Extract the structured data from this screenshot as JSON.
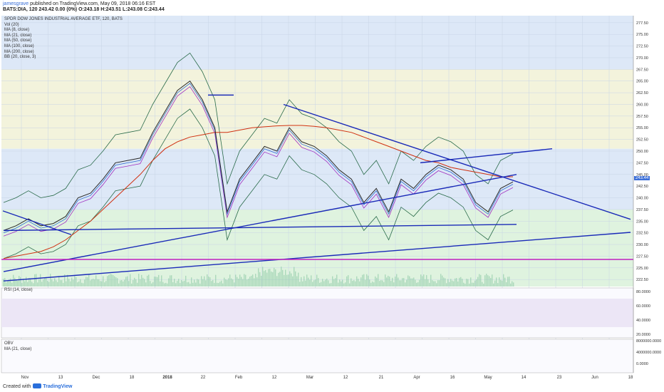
{
  "header": {
    "author": "jamesgrave",
    "published": " published on TradingView.com, May 09, 2018 06:16 EST",
    "quote": "BATS:DIA, 120  243.42 0.00 (0%) O:243.18 H:243.51 L:243.08 C:243.44"
  },
  "indicators": [
    "SPDR DOW JONES INDUSTRIAL AVERAGE ETF, 120, BATS",
    "Vol (20)",
    "MA (8, close)",
    "MA (21, close)",
    "MA (50, close)",
    "MA (100, close)",
    "MA (200, close)",
    "BB (20, close, 3)"
  ],
  "rsi_label": "RSI (14, close)",
  "obv_label": "OBV",
  "obv_sub": "MA (21, close)",
  "last_price_badge": "243.44",
  "footer": {
    "created": "Created with",
    "brand": "TradingView"
  },
  "colors": {
    "price_line": "#2a2a2a",
    "ma8": "#1a6b3e",
    "ma21": "#2e6bd0",
    "ma50": "#a030c0",
    "ma100": "#c03060",
    "ma200": "#d03010",
    "bb": "#2a6b4a",
    "trend": "#1a2ab8",
    "band_green": "#dff3df",
    "band_blue": "#dde8f7",
    "band_yellow": "#f3f3dc"
  },
  "chart_data": [
    {
      "type": "line",
      "title": "SPDR DOW JONES INDUSTRIAL AVERAGE ETF, 120, BATS",
      "x_tick_labels": [
        "Nov",
        "13",
        "Dec",
        "18",
        "2018",
        "22",
        "Feb",
        "12",
        "Mar",
        "12",
        "21",
        "Apr",
        "16",
        "May",
        "14",
        "23",
        "Jun",
        "18"
      ],
      "y_tick_labels": [
        "277.50",
        "275.00",
        "272.50",
        "270.00",
        "267.50",
        "265.00",
        "262.50",
        "260.00",
        "257.50",
        "255.00",
        "252.50",
        "250.00",
        "247.50",
        "245.00",
        "242.50",
        "240.00",
        "237.50",
        "235.00",
        "232.50",
        "230.00",
        "227.50",
        "225.00",
        "222.50"
      ],
      "ylim": [
        221,
        279
      ],
      "series": [
        {
          "name": "DIA close",
          "values": [
            233,
            234,
            235.5,
            234,
            234.5,
            236,
            240,
            241,
            244,
            247.5,
            248,
            248.5,
            254,
            258.5,
            263,
            265,
            261,
            255,
            237,
            244,
            247.5,
            251,
            250,
            255,
            252,
            251,
            249,
            246,
            244,
            239,
            242,
            237,
            244,
            242,
            245,
            247,
            246,
            244,
            239,
            237,
            242,
            243.4
          ]
        },
        {
          "name": "MA (200, close)",
          "values": [
            227,
            227.5,
            228,
            228.5,
            229.5,
            231,
            233,
            235,
            237.5,
            240,
            242.5,
            245,
            248,
            250.5,
            252,
            253,
            253.5,
            254,
            254,
            254.5,
            255,
            255.2,
            255.4,
            255.5,
            255.5,
            255.3,
            255,
            254.5,
            254,
            253,
            252,
            251,
            250,
            249,
            248,
            247.5,
            246.5,
            246,
            245.5,
            245,
            244.5,
            244.5
          ]
        }
      ],
      "volume_note": "Vol (20)"
    },
    {
      "type": "line",
      "title": "RSI (14, close)",
      "y_tick_labels": [
        "80.0000",
        "60.0000",
        "40.0000",
        "20.0000"
      ],
      "ylim": [
        15,
        85
      ]
    },
    {
      "type": "line",
      "title": "OBV",
      "y_tick_labels": [
        "8000000.0000",
        "4000000.0000",
        "0.0000"
      ]
    }
  ]
}
